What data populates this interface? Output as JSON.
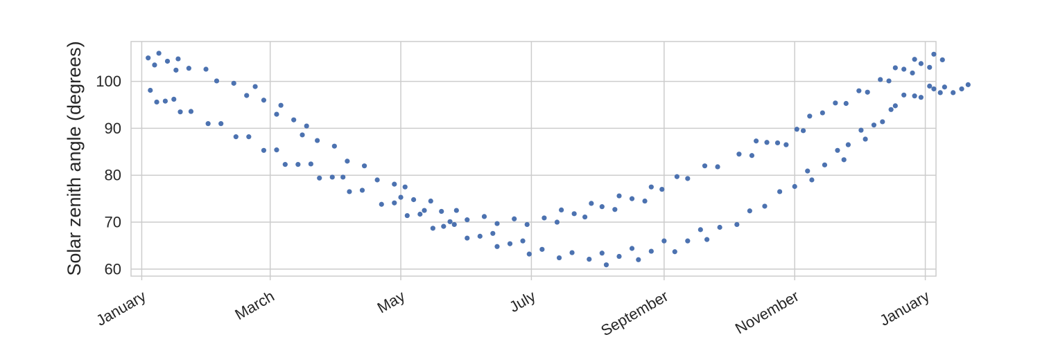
{
  "chart_data": {
    "type": "scatter",
    "title": "",
    "xlabel": "",
    "ylabel": "Solar zenith angle (degrees)",
    "x_ticks": [
      {
        "date": "2020-01-01",
        "label": "January"
      },
      {
        "date": "2020-03-01",
        "label": "March"
      },
      {
        "date": "2020-05-01",
        "label": "May"
      },
      {
        "date": "2020-07-01",
        "label": "July"
      },
      {
        "date": "2020-09-01",
        "label": "September"
      },
      {
        "date": "2020-11-01",
        "label": "November"
      },
      {
        "date": "2021-01-01",
        "label": "January"
      }
    ],
    "y_ticks": [
      60,
      70,
      80,
      90,
      100
    ],
    "xlim": [
      "2019-12-27",
      "2021-01-06"
    ],
    "ylim": [
      58.5,
      108.5
    ],
    "grid": true,
    "marker_color": "#4C72B0",
    "series": [
      {
        "points": [
          {
            "x": "2020-01-04",
            "y": 105.0
          },
          {
            "x": "2020-01-07",
            "y": 103.5
          },
          {
            "x": "2020-01-09",
            "y": 106.0
          },
          {
            "x": "2020-01-13",
            "y": 104.3
          },
          {
            "x": "2020-01-17",
            "y": 102.4
          },
          {
            "x": "2020-01-18",
            "y": 104.8
          },
          {
            "x": "2020-01-23",
            "y": 102.8
          },
          {
            "x": "2020-01-31",
            "y": 102.6
          },
          {
            "x": "2020-02-05",
            "y": 100.1
          },
          {
            "x": "2020-02-13",
            "y": 99.6
          },
          {
            "x": "2020-02-19",
            "y": 97.0
          },
          {
            "x": "2020-02-23",
            "y": 98.9
          },
          {
            "x": "2020-02-27",
            "y": 96.0
          },
          {
            "x": "2020-03-04",
            "y": 93.0
          },
          {
            "x": "2020-03-06",
            "y": 94.9
          },
          {
            "x": "2020-03-12",
            "y": 91.8
          },
          {
            "x": "2020-03-16",
            "y": 88.6
          },
          {
            "x": "2020-03-18",
            "y": 90.5
          },
          {
            "x": "2020-03-23",
            "y": 87.4
          },
          {
            "x": "2020-03-31",
            "y": 86.2
          },
          {
            "x": "2020-04-06",
            "y": 83.0
          },
          {
            "x": "2020-04-14",
            "y": 82.0
          },
          {
            "x": "2020-04-20",
            "y": 79.0
          },
          {
            "x": "2020-04-28",
            "y": 78.1
          },
          {
            "x": "2020-05-01",
            "y": 75.3
          },
          {
            "x": "2020-05-03",
            "y": 77.5
          },
          {
            "x": "2020-05-07",
            "y": 74.8
          },
          {
            "x": "2020-05-12",
            "y": 72.5
          },
          {
            "x": "2020-05-15",
            "y": 74.5
          },
          {
            "x": "2020-05-20",
            "y": 72.3
          },
          {
            "x": "2020-05-24",
            "y": 70.1
          },
          {
            "x": "2020-05-27",
            "y": 72.5
          },
          {
            "x": "2020-06-01",
            "y": 70.5
          },
          {
            "x": "2020-06-09",
            "y": 71.2
          },
          {
            "x": "2020-06-15",
            "y": 69.7
          },
          {
            "x": "2020-06-23",
            "y": 70.7
          },
          {
            "x": "2020-06-29",
            "y": 69.5
          },
          {
            "x": "2020-07-07",
            "y": 70.9
          },
          {
            "x": "2020-07-13",
            "y": 70.0
          },
          {
            "x": "2020-07-15",
            "y": 72.6
          },
          {
            "x": "2020-07-21",
            "y": 71.8
          },
          {
            "x": "2020-07-26",
            "y": 71.1
          },
          {
            "x": "2020-07-29",
            "y": 74.0
          },
          {
            "x": "2020-08-03",
            "y": 73.3
          },
          {
            "x": "2020-08-09",
            "y": 72.7
          },
          {
            "x": "2020-08-11",
            "y": 75.6
          },
          {
            "x": "2020-08-17",
            "y": 75.0
          },
          {
            "x": "2020-08-23",
            "y": 74.5
          },
          {
            "x": "2020-08-26",
            "y": 77.5
          },
          {
            "x": "2020-08-31",
            "y": 77.0
          },
          {
            "x": "2020-09-07",
            "y": 79.7
          },
          {
            "x": "2020-09-12",
            "y": 79.3
          },
          {
            "x": "2020-09-20",
            "y": 82.0
          },
          {
            "x": "2020-09-26",
            "y": 81.8
          },
          {
            "x": "2020-10-06",
            "y": 84.5
          },
          {
            "x": "2020-10-12",
            "y": 84.2
          },
          {
            "x": "2020-10-14",
            "y": 87.3
          },
          {
            "x": "2020-10-19",
            "y": 87.0
          },
          {
            "x": "2020-10-24",
            "y": 86.9
          },
          {
            "x": "2020-10-28",
            "y": 86.5
          },
          {
            "x": "2020-11-02",
            "y": 89.8
          },
          {
            "x": "2020-11-05",
            "y": 89.5
          },
          {
            "x": "2020-11-08",
            "y": 92.6
          },
          {
            "x": "2020-11-14",
            "y": 93.3
          },
          {
            "x": "2020-11-20",
            "y": 95.4
          },
          {
            "x": "2020-11-25",
            "y": 95.3
          },
          {
            "x": "2020-12-01",
            "y": 98.0
          },
          {
            "x": "2020-12-05",
            "y": 97.7
          },
          {
            "x": "2020-12-11",
            "y": 100.4
          },
          {
            "x": "2020-12-15",
            "y": 100.1
          },
          {
            "x": "2020-12-18",
            "y": 102.9
          },
          {
            "x": "2020-12-22",
            "y": 102.6
          },
          {
            "x": "2020-12-26",
            "y": 101.8
          },
          {
            "x": "2020-12-27",
            "y": 104.7
          },
          {
            "x": "2020-12-30",
            "y": 103.8
          },
          {
            "x": "2021-01-03",
            "y": 103.0
          },
          {
            "x": "2021-01-05",
            "y": 105.8
          },
          {
            "x": "2021-01-09",
            "y": 104.6
          }
        ]
      },
      {
        "points": [
          {
            "x": "2020-01-05",
            "y": 98.1
          },
          {
            "x": "2020-01-08",
            "y": 95.6
          },
          {
            "x": "2020-01-12",
            "y": 95.8
          },
          {
            "x": "2020-01-16",
            "y": 96.2
          },
          {
            "x": "2020-01-19",
            "y": 93.5
          },
          {
            "x": "2020-01-24",
            "y": 93.6
          },
          {
            "x": "2020-02-01",
            "y": 91.0
          },
          {
            "x": "2020-02-07",
            "y": 91.0
          },
          {
            "x": "2020-02-14",
            "y": 88.2
          },
          {
            "x": "2020-02-20",
            "y": 88.2
          },
          {
            "x": "2020-02-27",
            "y": 85.3
          },
          {
            "x": "2020-03-04",
            "y": 85.4
          },
          {
            "x": "2020-03-08",
            "y": 82.3
          },
          {
            "x": "2020-03-14",
            "y": 82.3
          },
          {
            "x": "2020-03-20",
            "y": 82.4
          },
          {
            "x": "2020-03-24",
            "y": 79.4
          },
          {
            "x": "2020-03-30",
            "y": 79.6
          },
          {
            "x": "2020-04-04",
            "y": 79.6
          },
          {
            "x": "2020-04-07",
            "y": 76.5
          },
          {
            "x": "2020-04-13",
            "y": 76.8
          },
          {
            "x": "2020-04-22",
            "y": 73.8
          },
          {
            "x": "2020-04-28",
            "y": 74.1
          },
          {
            "x": "2020-05-04",
            "y": 71.4
          },
          {
            "x": "2020-05-10",
            "y": 71.7
          },
          {
            "x": "2020-05-16",
            "y": 68.7
          },
          {
            "x": "2020-05-21",
            "y": 69.1
          },
          {
            "x": "2020-05-26",
            "y": 69.5
          },
          {
            "x": "2020-06-01",
            "y": 66.6
          },
          {
            "x": "2020-06-07",
            "y": 67.0
          },
          {
            "x": "2020-06-13",
            "y": 67.6
          },
          {
            "x": "2020-06-15",
            "y": 64.8
          },
          {
            "x": "2020-06-21",
            "y": 65.4
          },
          {
            "x": "2020-06-27",
            "y": 66.0
          },
          {
            "x": "2020-06-30",
            "y": 63.2
          },
          {
            "x": "2020-07-06",
            "y": 64.2
          },
          {
            "x": "2020-07-14",
            "y": 62.4
          },
          {
            "x": "2020-07-20",
            "y": 63.5
          },
          {
            "x": "2020-07-28",
            "y": 62.1
          },
          {
            "x": "2020-08-03",
            "y": 63.4
          },
          {
            "x": "2020-08-05",
            "y": 60.9
          },
          {
            "x": "2020-08-11",
            "y": 62.7
          },
          {
            "x": "2020-08-17",
            "y": 64.4
          },
          {
            "x": "2020-08-20",
            "y": 62.0
          },
          {
            "x": "2020-08-26",
            "y": 63.8
          },
          {
            "x": "2020-09-01",
            "y": 66.0
          },
          {
            "x": "2020-09-06",
            "y": 63.7
          },
          {
            "x": "2020-09-12",
            "y": 66.0
          },
          {
            "x": "2020-09-18",
            "y": 68.4
          },
          {
            "x": "2020-09-21",
            "y": 66.3
          },
          {
            "x": "2020-09-27",
            "y": 68.9
          },
          {
            "x": "2020-10-05",
            "y": 69.5
          },
          {
            "x": "2020-10-11",
            "y": 72.4
          },
          {
            "x": "2020-10-18",
            "y": 73.4
          },
          {
            "x": "2020-10-25",
            "y": 76.5
          },
          {
            "x": "2020-11-01",
            "y": 77.6
          },
          {
            "x": "2020-11-07",
            "y": 80.9
          },
          {
            "x": "2020-11-09",
            "y": 79.0
          },
          {
            "x": "2020-11-15",
            "y": 82.2
          },
          {
            "x": "2020-11-21",
            "y": 85.3
          },
          {
            "x": "2020-11-24",
            "y": 83.3
          },
          {
            "x": "2020-11-26",
            "y": 86.5
          },
          {
            "x": "2020-12-02",
            "y": 89.6
          },
          {
            "x": "2020-12-04",
            "y": 87.7
          },
          {
            "x": "2020-12-08",
            "y": 90.7
          },
          {
            "x": "2020-12-12",
            "y": 91.4
          },
          {
            "x": "2020-12-16",
            "y": 94.0
          },
          {
            "x": "2020-12-18",
            "y": 94.8
          },
          {
            "x": "2020-12-22",
            "y": 97.1
          },
          {
            "x": "2020-12-27",
            "y": 96.9
          },
          {
            "x": "2020-12-30",
            "y": 96.6
          },
          {
            "x": "2021-01-03",
            "y": 99.0
          },
          {
            "x": "2021-01-05",
            "y": 98.4
          },
          {
            "x": "2021-01-08",
            "y": 97.6
          },
          {
            "x": "2021-01-10",
            "y": 98.8
          },
          {
            "x": "2021-01-14",
            "y": 97.6
          },
          {
            "x": "2021-01-18",
            "y": 98.4
          },
          {
            "x": "2021-01-21",
            "y": 99.3
          }
        ]
      }
    ]
  }
}
